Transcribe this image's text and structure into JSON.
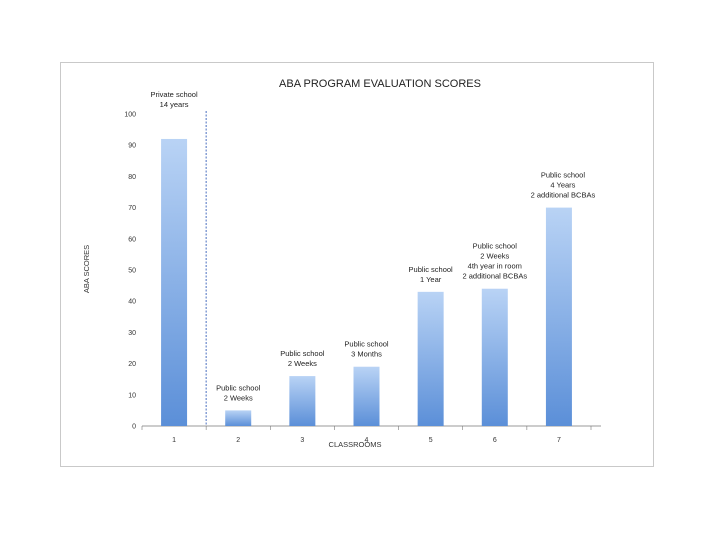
{
  "chart_data": {
    "type": "bar",
    "title": "ABA PROGRAM EVALUATION SCORES",
    "xlabel": "CLASSROOMS",
    "ylabel": "ABA SCORES",
    "ylim": [
      0,
      100
    ],
    "yticks": [
      0,
      10,
      20,
      30,
      40,
      50,
      60,
      70,
      80,
      90,
      100
    ],
    "categories": [
      "1",
      "2",
      "3",
      "4",
      "5",
      "6",
      "7"
    ],
    "values": [
      92,
      5,
      16,
      19,
      43,
      44,
      70
    ],
    "bar_color_top": "#b9d3f5",
    "bar_color_bottom": "#5b8fd8",
    "divider_color": "#4a6fc0",
    "annotations": [
      {
        "category": "1",
        "lines": [
          "Private school",
          "14 years"
        ]
      },
      {
        "category": "2",
        "lines": [
          "Public school",
          "2 Weeks"
        ]
      },
      {
        "category": "3",
        "lines": [
          "Public school",
          "2 Weeks"
        ]
      },
      {
        "category": "4",
        "lines": [
          "Public school",
          "3 Months"
        ]
      },
      {
        "category": "5",
        "lines": [
          "Public school",
          "1 Year"
        ]
      },
      {
        "category": "6",
        "lines": [
          "Public school",
          "2 Weeks",
          "4th year in room",
          "2 additional BCBAs"
        ]
      },
      {
        "category": "7",
        "lines": [
          "Public school",
          "4  Years",
          "2 additional BCBAs"
        ]
      }
    ]
  }
}
